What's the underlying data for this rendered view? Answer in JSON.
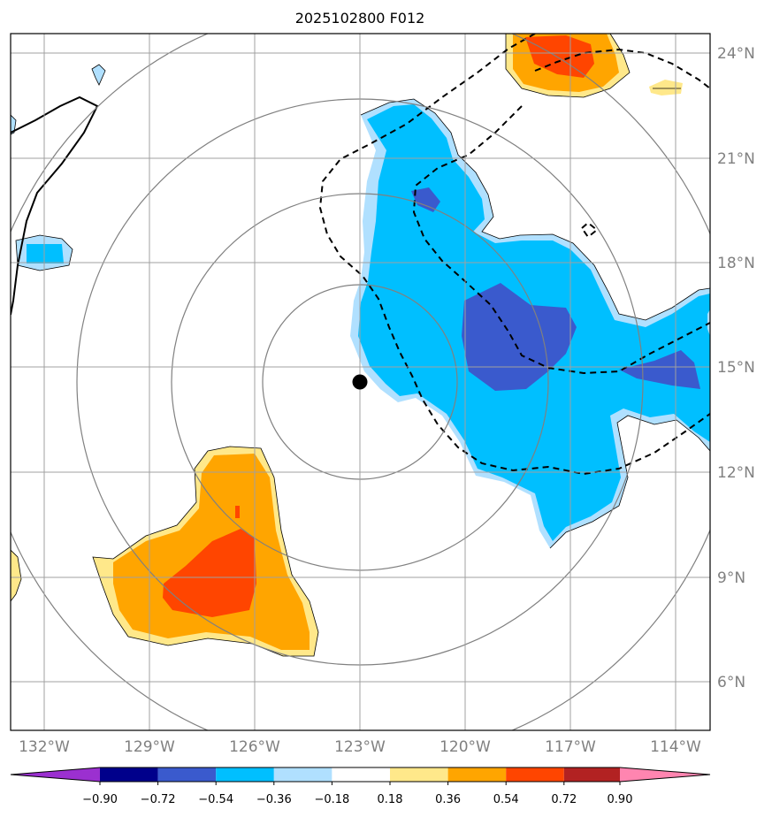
{
  "title": "2025102800 F012",
  "colors": {
    "purple": "#9b30d0",
    "navy": "#00008b",
    "royal": "#3a5acd",
    "cyan": "#00bfff",
    "lightblue": "#b0e0ff",
    "white": "#ffffff",
    "yellow": "#ffe88a",
    "orange": "#ffa500",
    "red": "#ff4500",
    "firebrick": "#b22222",
    "pink": "#ff85b0",
    "grid": "#a0a0a0",
    "ring": "#808080"
  },
  "longitude_labels": [
    "132°W",
    "129°W",
    "126°W",
    "123°W",
    "120°W",
    "117°W",
    "114°W"
  ],
  "latitude_labels": [
    "24°N",
    "21°N",
    "18°N",
    "15°N",
    "12°N",
    "9°N",
    "6°N"
  ],
  "storm_center": {
    "lon": -123,
    "lat": 14.6,
    "label": "storm-center-marker"
  },
  "colorbar": {
    "levels": [
      "−0.90",
      "−0.72",
      "−0.54",
      "−0.36",
      "−0.18",
      "0.18",
      "0.36",
      "0.54",
      "0.72",
      "0.90"
    ],
    "colors": [
      "#9b30d0",
      "#00008b",
      "#3a5acd",
      "#00bfff",
      "#b0e0ff",
      "#ffffff",
      "#ffe88a",
      "#ffa500",
      "#ff4500",
      "#b22222",
      "#ff85b0"
    ]
  }
}
